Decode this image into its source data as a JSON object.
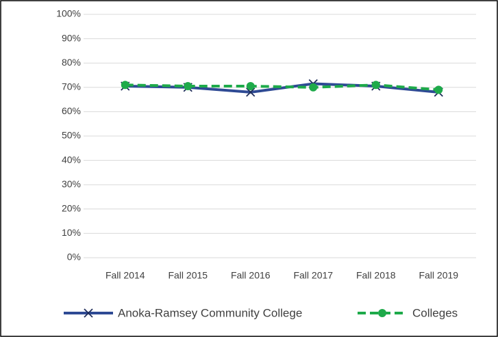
{
  "chart_data": {
    "type": "line",
    "categories": [
      "Fall 2014",
      "Fall 2015",
      "Fall 2016",
      "Fall 2017",
      "Fall 2018",
      "Fall 2019"
    ],
    "series": [
      {
        "name": "Anoka-Ramsey Community College",
        "color": "#2E4A94",
        "marker": "x",
        "line_style": "solid",
        "values": [
          70.5,
          70,
          68,
          71.5,
          70.5,
          68
        ]
      },
      {
        "name": "Colleges",
        "color": "#1EAA4A",
        "marker": "circle",
        "line_style": "dashed",
        "values": [
          71,
          70.5,
          70.5,
          70,
          71,
          69
        ]
      }
    ],
    "ylim": [
      0,
      100
    ],
    "yticks": [
      {
        "value": 0,
        "label": "0%"
      },
      {
        "value": 10,
        "label": "10%"
      },
      {
        "value": 20,
        "label": "20%"
      },
      {
        "value": 30,
        "label": "30%"
      },
      {
        "value": 40,
        "label": "40%"
      },
      {
        "value": 50,
        "label": "50%"
      },
      {
        "value": 60,
        "label": "60%"
      },
      {
        "value": 70,
        "label": "70%"
      },
      {
        "value": 80,
        "label": "80%"
      },
      {
        "value": 90,
        "label": "90%"
      },
      {
        "value": 100,
        "label": "100%"
      }
    ],
    "grid": true,
    "legend": "bottom"
  }
}
